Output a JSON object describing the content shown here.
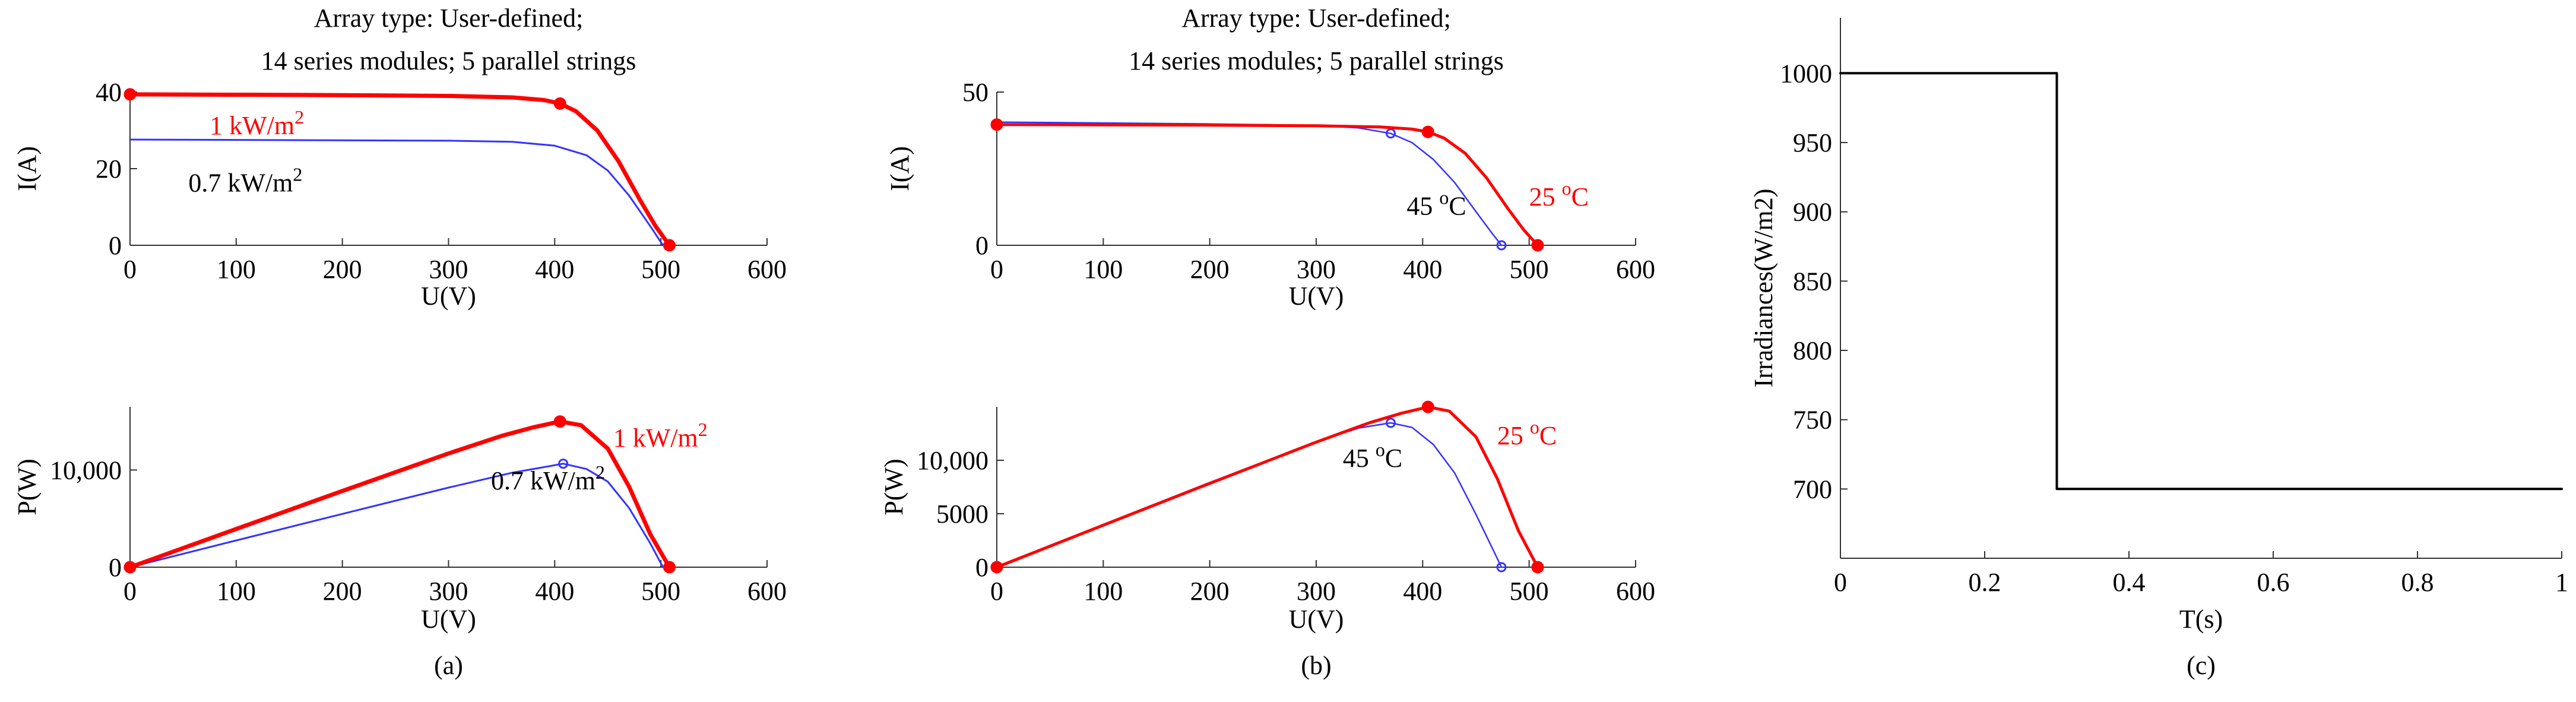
{
  "colors": {
    "red": "#ff0000",
    "blue": "#3333ff",
    "black": "#000000",
    "magenta": "#cc33cc"
  },
  "chart_data": [
    {
      "id": "a-iv",
      "type": "line",
      "title": "Array type: User-defined;",
      "subtitle": "14 series modules; 5 parallel strings",
      "xlabel": "U(V)",
      "ylabel": "I(A)",
      "xlim": [
        0,
        600
      ],
      "ylim": [
        0,
        40
      ],
      "xticks": [
        0,
        100,
        200,
        300,
        400,
        500,
        600
      ],
      "yticks": [
        0,
        20,
        40
      ],
      "ytick_labels": [
        "0",
        "20",
        "40"
      ],
      "series": [
        {
          "name": "1 kW/m2",
          "color": "#ff0000",
          "width": 7,
          "x": [
            0,
            100,
            200,
            300,
            360,
            390,
            405,
            420,
            440,
            460,
            480,
            495,
            508
          ],
          "y": [
            39.4,
            39.3,
            39.2,
            39.0,
            38.6,
            37.9,
            37.0,
            35.0,
            30.0,
            22.0,
            12.0,
            5.0,
            0
          ],
          "markers": [
            [
              0,
              39.4
            ],
            [
              405,
              37.0
            ],
            [
              508,
              0
            ]
          ]
        },
        {
          "name": "0.7 kW/m2",
          "color": "#3333ff",
          "width": 3,
          "x": [
            0,
            100,
            200,
            300,
            360,
            400,
            430,
            450,
            470,
            490,
            502
          ],
          "y": [
            27.6,
            27.5,
            27.4,
            27.3,
            27.0,
            26.0,
            23.5,
            19.5,
            13.0,
            5.0,
            0
          ],
          "markers": []
        }
      ],
      "annotations": [
        {
          "text": "1 kW/m",
          "sup": "2",
          "x": 75,
          "y": 29,
          "color": "#ff0000"
        },
        {
          "text": "0.7 kW/m",
          "sup": "2",
          "x": 55,
          "y": 14,
          "color": "#000000"
        }
      ]
    },
    {
      "id": "a-pv",
      "type": "line",
      "xlabel": "U(V)",
      "ylabel": "P(W)",
      "caption": "(a)",
      "xlim": [
        0,
        600
      ],
      "ylim": [
        0,
        16500
      ],
      "xticks": [
        0,
        100,
        200,
        300,
        400,
        500,
        600
      ],
      "yticks": [
        0,
        10000
      ],
      "ytick_labels": [
        "0",
        "10,000"
      ],
      "series": [
        {
          "name": "1 kW/m2",
          "color": "#ff0000",
          "width": 7,
          "x": [
            0,
            100,
            200,
            300,
            350,
            380,
            405,
            425,
            450,
            470,
            490,
            508
          ],
          "y": [
            0,
            3930,
            7840,
            11700,
            13510,
            14400,
            14990,
            14600,
            12200,
            8300,
            3400,
            0
          ],
          "markers": [
            [
              0,
              0
            ],
            [
              405,
              14990
            ],
            [
              508,
              0
            ]
          ]
        },
        {
          "name": "0.7 kW/m2",
          "color": "#3333ff",
          "width": 3,
          "x": [
            0,
            100,
            200,
            300,
            360,
            390,
            408,
            430,
            450,
            470,
            490,
            502
          ],
          "y": [
            0,
            2750,
            5480,
            8190,
            9720,
            10300,
            10650,
            10100,
            8800,
            6100,
            2450,
            0
          ],
          "markers": [
            [
              408,
              10650
            ]
          ]
        }
      ],
      "annotations": [
        {
          "text": "1 kW/m",
          "sup": "2",
          "x": 455,
          "y": 12400,
          "color": "#ff0000"
        },
        {
          "text": "0.7 kW/m",
          "sup": "2",
          "x": 340,
          "y": 8000,
          "color": "#000000"
        }
      ]
    },
    {
      "id": "b-iv",
      "type": "line",
      "title": "Array type: User-defined;",
      "subtitle": "14 series modules; 5 parallel strings",
      "xlabel": "U(V)",
      "ylabel": "I(A)",
      "xlim": [
        0,
        600
      ],
      "ylim": [
        0,
        50
      ],
      "xticks": [
        0,
        100,
        200,
        300,
        400,
        500,
        600
      ],
      "yticks": [
        0,
        50
      ],
      "ytick_labels": [
        "0",
        "50"
      ],
      "series": [
        {
          "name": "25 °C",
          "color": "#ff0000",
          "width": 5,
          "x": [
            0,
            100,
            200,
            300,
            360,
            390,
            405,
            420,
            440,
            460,
            480,
            495,
            508
          ],
          "y": [
            39.4,
            39.3,
            39.2,
            39.0,
            38.6,
            37.9,
            37.0,
            35.0,
            30.0,
            22.0,
            12.0,
            5.0,
            0
          ],
          "markers": [
            [
              0,
              39.4
            ],
            [
              405,
              37.0
            ],
            [
              508,
              0
            ]
          ]
        },
        {
          "name": "45 °C",
          "color": "#3333ff",
          "width": 2.5,
          "x": [
            0,
            100,
            200,
            300,
            340,
            370,
            390,
            410,
            430,
            450,
            465,
            474
          ],
          "y": [
            40.2,
            39.9,
            39.6,
            39.1,
            38.3,
            36.5,
            33.5,
            28.0,
            20.5,
            11.0,
            4.0,
            0
          ],
          "markers": [
            [
              370,
              36.5
            ],
            [
              474,
              0
            ]
          ]
        }
      ],
      "annotations": [
        {
          "text": "45 ",
          "sup": "o",
          "after": "C",
          "x": 385,
          "y": 10,
          "color": "#000000"
        },
        {
          "text": "25 ",
          "sup": "o",
          "after": "C",
          "x": 500,
          "y": 13,
          "color": "#ff0000"
        }
      ]
    },
    {
      "id": "b-pv",
      "type": "line",
      "xlabel": "U(V)",
      "ylabel": "P(W)",
      "caption": "(b)",
      "xlim": [
        0,
        600
      ],
      "ylim": [
        0,
        15000
      ],
      "xticks": [
        0,
        100,
        200,
        300,
        400,
        500,
        600
      ],
      "yticks": [
        0,
        5000,
        10000
      ],
      "ytick_labels": [
        "0",
        "5000",
        "10,000"
      ],
      "series": [
        {
          "name": "25 °C",
          "color": "#ff0000",
          "width": 5,
          "x": [
            0,
            100,
            200,
            300,
            350,
            380,
            405,
            425,
            450,
            470,
            490,
            508
          ],
          "y": [
            0,
            3930,
            7840,
            11700,
            13510,
            14400,
            14990,
            14600,
            12200,
            8300,
            3400,
            0
          ],
          "markers": [
            [
              0,
              0
            ],
            [
              405,
              14990
            ],
            [
              508,
              0
            ]
          ]
        },
        {
          "name": "45 °C",
          "color": "#3333ff",
          "width": 2.5,
          "x": [
            0,
            100,
            200,
            300,
            340,
            370,
            390,
            410,
            430,
            450,
            465,
            474
          ],
          "y": [
            0,
            3990,
            7920,
            11730,
            13020,
            13500,
            13070,
            11480,
            8820,
            4950,
            1860,
            0
          ],
          "markers": [
            [
              370,
              13500
            ],
            [
              474,
              0
            ]
          ]
        }
      ],
      "annotations": [
        {
          "text": "45 ",
          "sup": "o",
          "after": "C",
          "x": 325,
          "y": 9400,
          "color": "#000000"
        },
        {
          "text": "25 ",
          "sup": "o",
          "after": "C",
          "x": 470,
          "y": 11500,
          "color": "#ff0000"
        }
      ]
    },
    {
      "id": "c-irr",
      "type": "line",
      "xlabel": "T(s)",
      "ylabel": "Irradiances(W/m2)",
      "caption": "(c)",
      "xlim": [
        0,
        1
      ],
      "ylim": [
        650,
        1040
      ],
      "xticks": [
        0,
        0.2,
        0.4,
        0.6,
        0.8,
        1
      ],
      "xtick_labels": [
        "0",
        "0.2",
        "0.4",
        "0.6",
        "0.8",
        "1"
      ],
      "yticks": [
        700,
        750,
        800,
        850,
        900,
        950,
        1000
      ],
      "ytick_labels": [
        "700",
        "750",
        "800",
        "850",
        "900",
        "950",
        "1000"
      ],
      "series": [
        {
          "name": "Irradiance",
          "color": "#000000",
          "width": 4,
          "x": [
            0,
            0.3,
            0.3,
            1
          ],
          "y": [
            1000,
            1000,
            700,
            700
          ],
          "markers": []
        }
      ],
      "annotations": []
    }
  ]
}
